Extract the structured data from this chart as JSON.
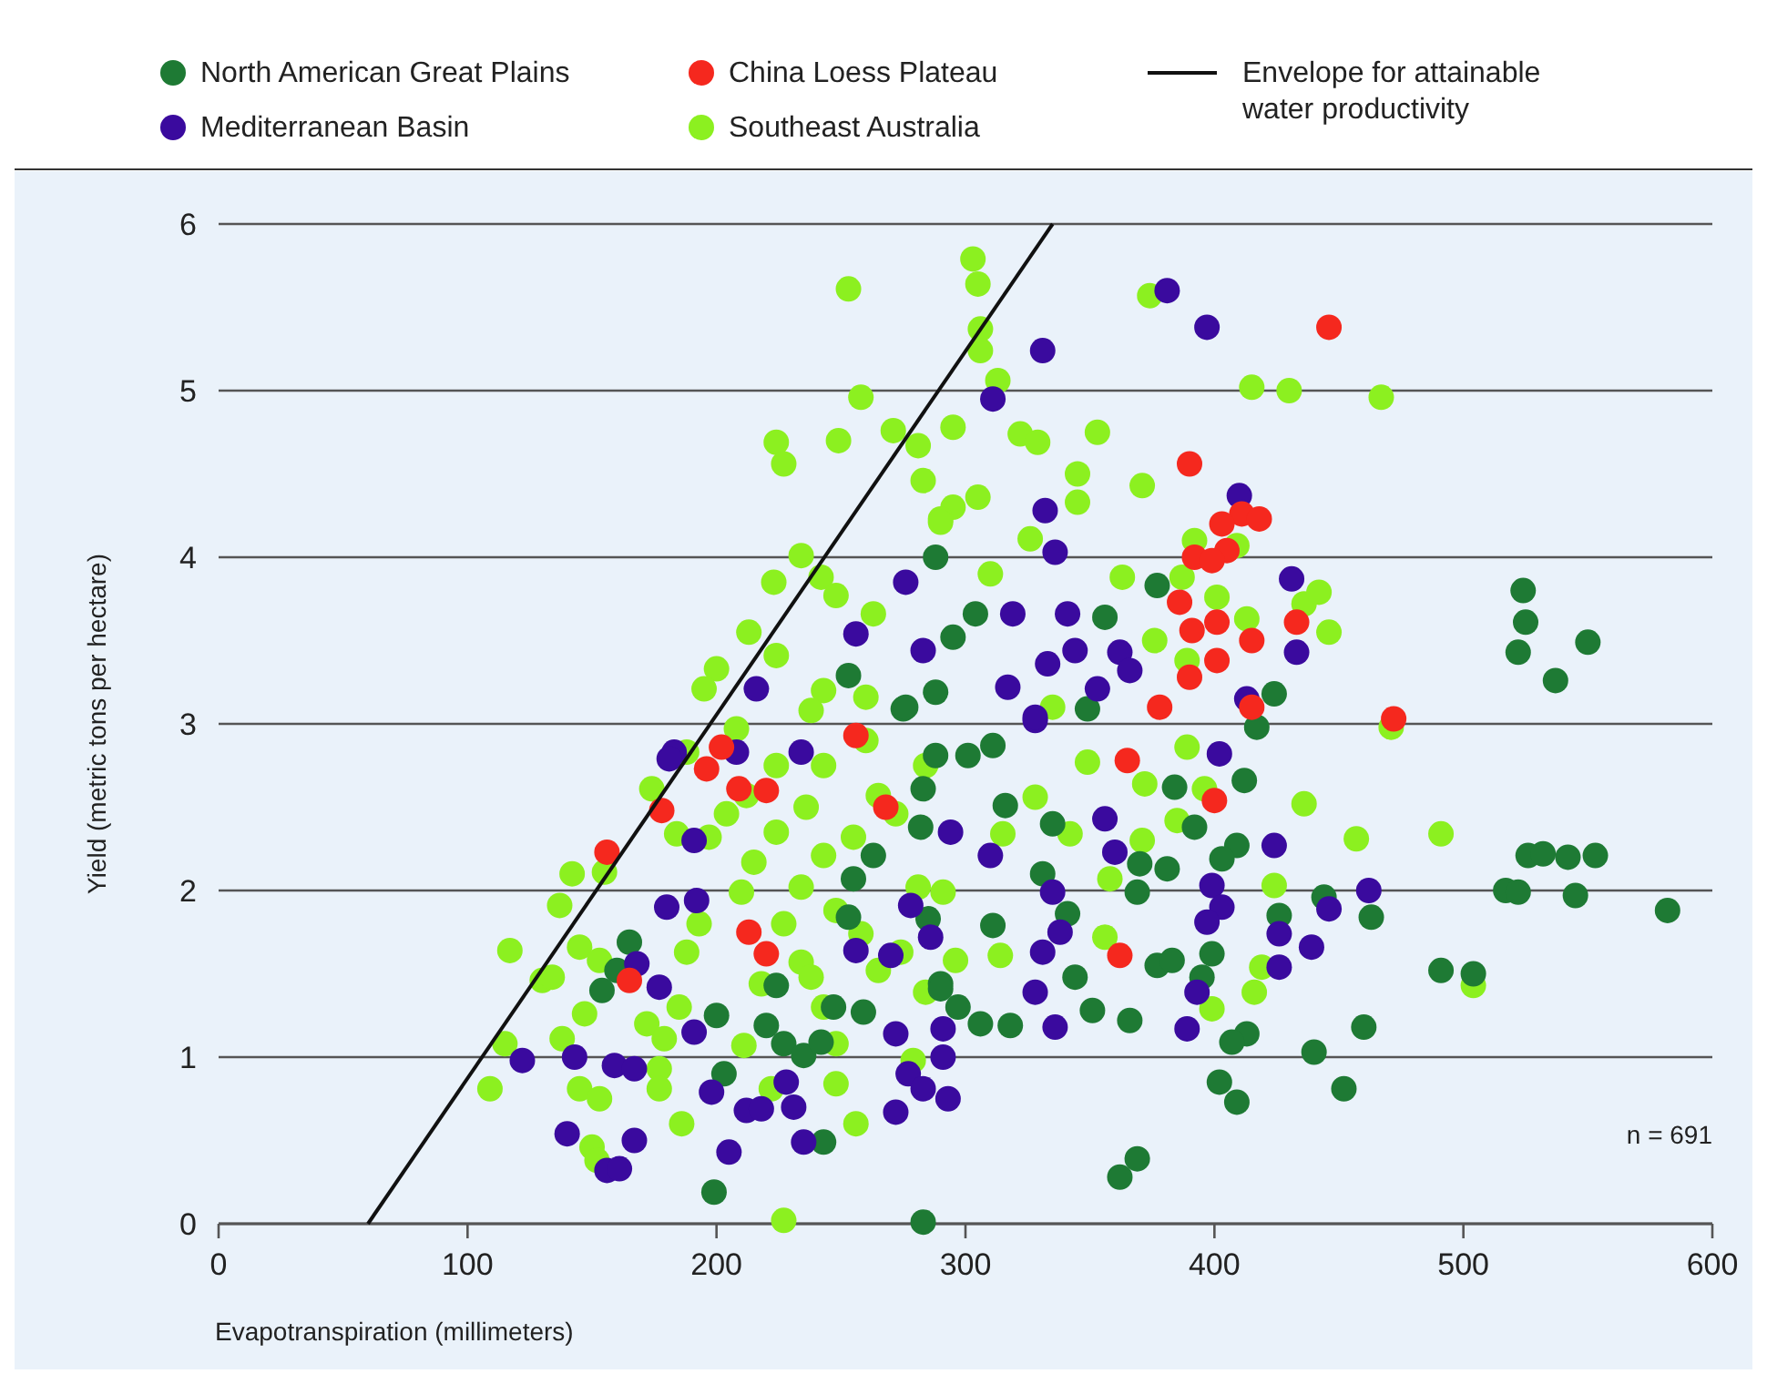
{
  "chart_data": {
    "type": "scatter",
    "xlabel": "Evapotranspiration (millimeters)",
    "ylabel": "Yield (metric tons per hectare)",
    "xlim": [
      0,
      600
    ],
    "ylim": [
      0,
      6
    ],
    "xticks": [
      0,
      100,
      200,
      300,
      400,
      500,
      600
    ],
    "yticks": [
      0,
      1,
      2,
      3,
      4,
      5,
      6
    ],
    "grid": "y",
    "legend": "top",
    "marker": "circle",
    "annotations": [
      "n = 691"
    ],
    "series": [
      {
        "name": "North American Great Plains",
        "color": "#1e7a34",
        "x": [
          524,
          525,
          522,
          550,
          537,
          526,
          532,
          542,
          553,
          517,
          522,
          545,
          582,
          491,
          504,
          460,
          440,
          452,
          402,
          409,
          362,
          369,
          413,
          407,
          463,
          444,
          426,
          395,
          377,
          383,
          399,
          351,
          366,
          318,
          306,
          297,
          344,
          412,
          417,
          384,
          335,
          392,
          409,
          370,
          381,
          403,
          331,
          316,
          311,
          301,
          349,
          369,
          341,
          311,
          290,
          424,
          283,
          199,
          165,
          160,
          154,
          200,
          203,
          224,
          220,
          227,
          235,
          242,
          243,
          247,
          259,
          253,
          255,
          263,
          282,
          283,
          288,
          275,
          290,
          285,
          288,
          288,
          276,
          253,
          295,
          377,
          356,
          304
        ],
        "values": [
          3.8,
          3.61,
          3.43,
          3.49,
          3.26,
          2.21,
          2.22,
          2.2,
          2.21,
          2.0,
          1.99,
          1.97,
          1.88,
          1.52,
          1.5,
          1.18,
          1.03,
          0.81,
          0.85,
          0.73,
          0.28,
          0.39,
          1.14,
          1.09,
          1.84,
          1.96,
          1.85,
          1.48,
          1.55,
          1.58,
          1.62,
          1.28,
          1.22,
          1.19,
          1.2,
          1.3,
          1.48,
          2.66,
          2.98,
          2.62,
          2.4,
          2.38,
          2.27,
          2.16,
          2.13,
          2.19,
          2.1,
          2.51,
          2.87,
          2.81,
          3.09,
          1.99,
          1.86,
          1.79,
          1.44,
          3.18,
          0.01,
          0.19,
          1.69,
          1.52,
          1.4,
          1.25,
          0.9,
          1.43,
          1.19,
          1.08,
          1.01,
          1.09,
          0.49,
          1.3,
          1.27,
          1.84,
          2.07,
          2.21,
          2.38,
          2.61,
          2.81,
          3.09,
          1.41,
          1.83,
          4.0,
          3.19,
          3.1,
          3.29,
          3.52,
          3.83,
          3.64,
          3.66
        ]
      },
      {
        "name": "Mediterranean Basin",
        "color": "#3a0a9e",
        "x": [
          381,
          397,
          331,
          311,
          332,
          410,
          431,
          433,
          336,
          319,
          341,
          344,
          333,
          362,
          366,
          317,
          413,
          402,
          353,
          328,
          276,
          256,
          283,
          216,
          183,
          181,
          208,
          234,
          191,
          180,
          192,
          168,
          177,
          191,
          122,
          143,
          159,
          167,
          140,
          167,
          156,
          161,
          198,
          205,
          212,
          218,
          231,
          228,
          235,
          272,
          272,
          277,
          283,
          293,
          291,
          291,
          278,
          286,
          270,
          256,
          294,
          336,
          328,
          331,
          338,
          335,
          310,
          356,
          360,
          424,
          399,
          403,
          397,
          393,
          389,
          426,
          426,
          439,
          446,
          462,
          328
        ],
        "values": [
          5.6,
          5.38,
          5.24,
          4.95,
          4.28,
          4.37,
          3.87,
          3.43,
          4.03,
          3.66,
          3.66,
          3.44,
          3.36,
          3.43,
          3.32,
          3.22,
          3.15,
          2.82,
          3.21,
          3.02,
          3.85,
          3.54,
          3.44,
          3.21,
          2.83,
          2.79,
          2.83,
          2.83,
          2.3,
          1.9,
          1.94,
          1.56,
          1.42,
          1.15,
          0.98,
          1.0,
          0.95,
          0.93,
          0.54,
          0.5,
          0.32,
          0.33,
          0.79,
          0.43,
          0.68,
          0.69,
          0.7,
          0.85,
          0.49,
          1.14,
          0.67,
          0.9,
          0.81,
          0.75,
          1.17,
          1.0,
          1.91,
          1.72,
          1.61,
          1.64,
          2.35,
          1.18,
          1.39,
          1.63,
          1.75,
          1.99,
          2.21,
          2.43,
          2.23,
          2.27,
          2.03,
          1.9,
          1.81,
          1.39,
          1.17,
          1.74,
          1.54,
          1.66,
          1.89,
          2.0,
          3.04
        ]
      },
      {
        "name": "China Loess Plateau",
        "color": "#f5281e",
        "x": [
          446,
          390,
          411,
          418,
          403,
          405,
          392,
          399,
          386,
          401,
          415,
          391,
          401,
          390,
          433,
          415,
          378,
          472,
          365,
          400,
          362,
          256,
          202,
          196,
          209,
          220,
          178,
          268,
          156,
          213,
          220,
          165
        ],
        "values": [
          5.38,
          4.56,
          4.26,
          4.23,
          4.2,
          4.04,
          4.0,
          3.98,
          3.73,
          3.61,
          3.5,
          3.56,
          3.38,
          3.28,
          3.61,
          3.1,
          3.1,
          3.03,
          2.78,
          2.54,
          1.61,
          2.93,
          2.86,
          2.73,
          2.61,
          2.6,
          2.48,
          2.5,
          2.23,
          1.75,
          1.62,
          1.46
        ]
      },
      {
        "name": "Southeast Australia",
        "color": "#8cf020",
        "x": [
          253,
          303,
          305,
          306,
          306,
          313,
          374,
          415,
          430,
          467,
          295,
          322,
          329,
          353,
          345,
          345,
          371,
          326,
          305,
          295,
          290,
          363,
          387,
          392,
          409,
          436,
          442,
          446,
          401,
          413,
          376,
          389,
          471,
          310,
          249,
          224,
          227,
          258,
          271,
          281,
          283,
          290,
          234,
          223,
          242,
          248,
          263,
          213,
          224,
          243,
          200,
          195,
          260,
          188,
          174,
          184,
          197,
          204,
          142,
          137,
          155,
          117,
          130,
          134,
          145,
          153,
          147,
          115,
          109,
          138,
          145,
          153,
          150,
          152,
          172,
          179,
          185,
          177,
          177,
          186,
          211,
          222,
          227,
          248,
          256,
          188,
          193,
          210,
          218,
          234,
          243,
          238,
          248,
          265,
          274,
          279,
          284,
          227,
          234,
          248,
          258,
          215,
          224,
          243,
          255,
          265,
          272,
          284,
          236,
          212,
          224,
          243,
          260,
          208,
          238,
          296,
          281,
          291,
          335,
          349,
          389,
          385,
          371,
          358,
          342,
          315,
          314,
          436,
          457,
          491,
          504,
          424,
          419,
          416,
          399,
          356,
          328,
          372,
          396
        ],
        "values": [
          5.61,
          5.79,
          5.64,
          5.37,
          5.24,
          5.06,
          5.57,
          5.02,
          5.0,
          4.96,
          4.78,
          4.74,
          4.69,
          4.75,
          4.5,
          4.33,
          4.43,
          4.11,
          4.36,
          4.3,
          4.23,
          3.88,
          3.88,
          4.1,
          4.07,
          3.72,
          3.79,
          3.55,
          3.76,
          3.63,
          3.5,
          3.38,
          2.98,
          3.9,
          4.7,
          4.69,
          4.56,
          4.96,
          4.76,
          4.67,
          4.46,
          4.21,
          4.01,
          3.85,
          3.88,
          3.77,
          3.66,
          3.55,
          3.41,
          3.2,
          3.33,
          3.21,
          3.16,
          2.83,
          2.61,
          2.34,
          2.32,
          2.46,
          2.1,
          1.91,
          2.11,
          1.64,
          1.46,
          1.48,
          1.66,
          1.58,
          1.26,
          1.08,
          0.81,
          1.11,
          0.81,
          0.75,
          0.46,
          0.38,
          1.2,
          1.11,
          1.3,
          0.93,
          0.81,
          0.6,
          1.07,
          0.81,
          0.02,
          0.84,
          0.6,
          1.63,
          1.8,
          1.99,
          1.44,
          1.57,
          1.3,
          1.48,
          1.08,
          1.52,
          1.63,
          0.98,
          1.39,
          1.8,
          2.02,
          1.88,
          1.74,
          2.17,
          2.35,
          2.21,
          2.32,
          2.57,
          2.46,
          2.75,
          2.5,
          2.57,
          2.75,
          2.75,
          2.9,
          2.97,
          3.08,
          1.58,
          2.02,
          1.99,
          3.1,
          2.77,
          2.86,
          2.42,
          2.3,
          2.07,
          2.34,
          2.34,
          1.61,
          2.52,
          2.31,
          2.34,
          1.43,
          2.03,
          1.54,
          1.39,
          1.29,
          1.72,
          2.56,
          2.64,
          2.61
        ]
      },
      {
        "name": "Envelope for attainable water productivity",
        "type": "line",
        "color": "#111111",
        "marker": "none",
        "x": [
          60,
          335
        ],
        "values": [
          0,
          6
        ]
      }
    ]
  }
}
